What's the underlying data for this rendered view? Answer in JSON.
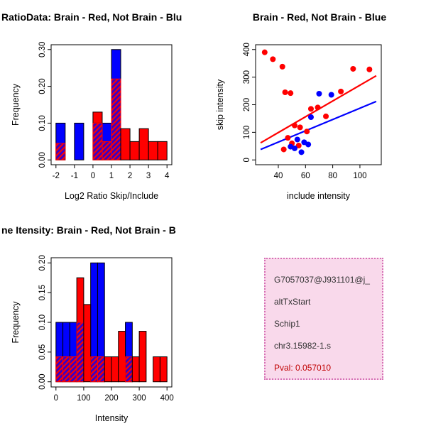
{
  "colors": {
    "brain": "#ff0000",
    "not_brain": "#0000ff",
    "axis": "#000000"
  },
  "chart_data": [
    {
      "type": "bar",
      "subtype": "overlaid-histogram",
      "title": "RatioData: Brain - Red, Not Brain - Blu",
      "xlabel": "Log2 Ratio Skip/Include",
      "ylabel": "Frequency",
      "bin_start": -2,
      "bin_width": 0.5,
      "xlim": [
        -2,
        4
      ],
      "ylim": [
        0,
        0.3
      ],
      "xticks": [
        -2,
        -1,
        0,
        1,
        2,
        3,
        4
      ],
      "xtick_labels": [
        "-2",
        "-1",
        "0",
        "1",
        "2",
        "3",
        "4"
      ],
      "yticks": [
        0,
        0.1,
        0.2,
        0.3
      ],
      "ytick_labels": [
        "0.00",
        "0.10",
        "0.20",
        "0.30"
      ],
      "series": [
        {
          "name": "Not Brain",
          "color": "#0000ff",
          "values": [
            0.1,
            0,
            0.1,
            0,
            0.1,
            0.1,
            0.3,
            0,
            0,
            0,
            0,
            0
          ]
        },
        {
          "name": "Brain",
          "color": "#ff0000",
          "style": "hatched-overlay",
          "values": [
            0.045,
            0,
            0,
            0,
            0.13,
            0.05,
            0.22,
            0.085,
            0.05,
            0.085,
            0.05,
            0.05
          ]
        }
      ]
    },
    {
      "type": "scatter",
      "title": "Brain - Red, Not Brain - Blue",
      "xlabel": "include intensity",
      "ylabel": "skip intensity",
      "xlim": [
        27,
        112
      ],
      "ylim": [
        0,
        400
      ],
      "xticks": [
        40,
        60,
        80,
        100
      ],
      "xtick_labels": [
        "40",
        "60",
        "80",
        "100"
      ],
      "yticks": [
        0,
        100,
        200,
        300,
        400
      ],
      "ytick_labels": [
        "0",
        "100",
        "200",
        "300",
        "400"
      ],
      "series": [
        {
          "name": "Brain",
          "color": "#ff0000",
          "points": [
            [
              30,
              390
            ],
            [
              36,
              365
            ],
            [
              43,
              338
            ],
            [
              95,
              330
            ],
            [
              107,
              328
            ],
            [
              45,
              245
            ],
            [
              49,
              242
            ],
            [
              86,
              248
            ],
            [
              64,
              185
            ],
            [
              69,
              190
            ],
            [
              75,
              158
            ],
            [
              52,
              125
            ],
            [
              56,
              118
            ],
            [
              61,
              103
            ],
            [
              47,
              80
            ],
            [
              50,
              60
            ],
            [
              44,
              38
            ],
            [
              55,
              52
            ]
          ]
        },
        {
          "name": "Not Brain",
          "color": "#0000ff",
          "points": [
            [
              70,
              240
            ],
            [
              79,
              236
            ],
            [
              64,
              155
            ],
            [
              54,
              74
            ],
            [
              59,
              64
            ],
            [
              62,
              56
            ],
            [
              49,
              48
            ],
            [
              52,
              42
            ],
            [
              57,
              28
            ]
          ]
        }
      ],
      "lines": [
        {
          "name": "brain-fit",
          "color": "#ff0000",
          "x1": 27,
          "y1": 62,
          "x2": 112,
          "y2": 305
        },
        {
          "name": "not-brain-fit",
          "color": "#0000ff",
          "x1": 27,
          "y1": 38,
          "x2": 112,
          "y2": 212
        }
      ]
    },
    {
      "type": "bar",
      "subtype": "overlaid-histogram",
      "title": "ne Itensity: Brain - Red, Not Brain - B",
      "xlabel": "Intensity",
      "ylabel": "Frequency",
      "bin_start": 0,
      "bin_width": 25,
      "xlim": [
        0,
        400
      ],
      "ylim": [
        0,
        0.2
      ],
      "xticks": [
        0,
        100,
        200,
        300,
        400
      ],
      "xtick_labels": [
        "0",
        "100",
        "200",
        "300",
        "400"
      ],
      "yticks": [
        0,
        0.05,
        0.1,
        0.15,
        0.2
      ],
      "ytick_labels": [
        "0.00",
        "0.05",
        "0.10",
        "0.15",
        "0.20"
      ],
      "series": [
        {
          "name": "Not Brain",
          "color": "#0000ff",
          "values": [
            0.1,
            0.1,
            0.1,
            0.1,
            0,
            0.2,
            0.2,
            0,
            0,
            0,
            0.1,
            0,
            0,
            0,
            0,
            0
          ]
        },
        {
          "name": "Brain",
          "color": "#ff0000",
          "style": "hatched-overlay",
          "values": [
            0.042,
            0.042,
            0.042,
            0.175,
            0.13,
            0.042,
            0.042,
            0.042,
            0.042,
            0.085,
            0.042,
            0.042,
            0.085,
            0,
            0.042,
            0.042
          ]
        }
      ]
    }
  ],
  "info_box": {
    "bg": "#f9d9eb",
    "border_color": "#d671b5",
    "lines": [
      {
        "text": "G7057037@J931101@j_",
        "color": "#333333"
      },
      {
        "text": "altTxStart",
        "color": "#333333"
      },
      {
        "text": "Schip1",
        "color": "#333333"
      },
      {
        "text": "chr3.15982-1.s",
        "color": "#333333"
      },
      {
        "text": "Pval: 0.057010",
        "color": "#c00000"
      }
    ]
  }
}
